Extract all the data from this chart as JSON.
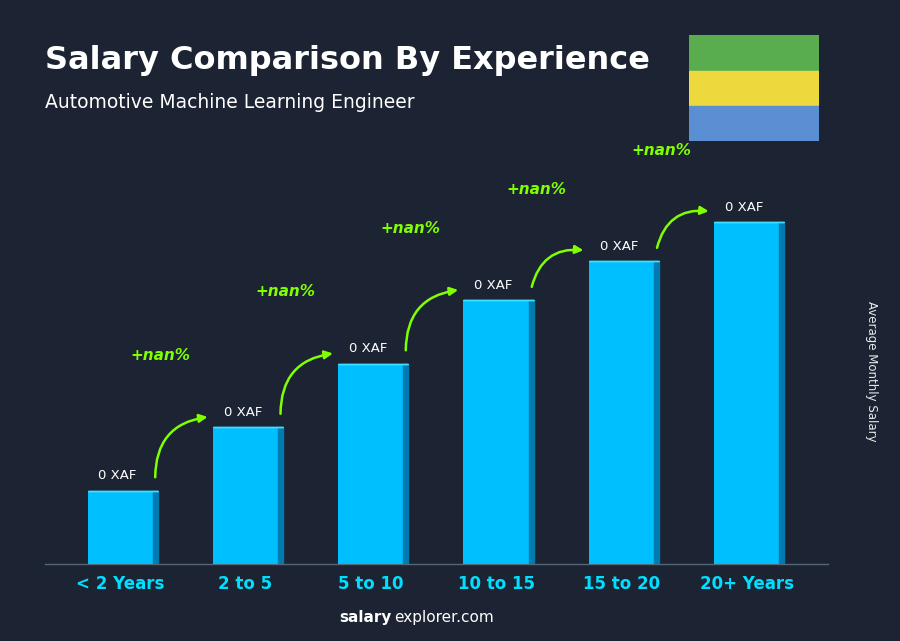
{
  "title": "Salary Comparison By Experience",
  "subtitle": "Automotive Machine Learning Engineer",
  "categories": [
    "< 2 Years",
    "2 to 5",
    "5 to 10",
    "10 to 15",
    "15 to 20",
    "20+ Years"
  ],
  "bar_color": "#00BFFF",
  "bg_color": "#1a1a2e",
  "title_color": "#ffffff",
  "subtitle_color": "#ffffff",
  "label_color": "#00DFFF",
  "value_labels": [
    "0 XAF",
    "0 XAF",
    "0 XAF",
    "0 XAF",
    "0 XAF",
    "0 XAF"
  ],
  "arrow_labels": [
    "+nan%",
    "+nan%",
    "+nan%",
    "+nan%",
    "+nan%"
  ],
  "arrow_color": "#7FFF00",
  "footer_bold": "salary",
  "footer_normal": "explorer.com",
  "ylabel_text": "Average Monthly Salary",
  "flag_colors": [
    "#5cb85c",
    "#f0d060",
    "#5b8fd4"
  ],
  "bar_heights": [
    1.5,
    2.8,
    4.1,
    5.4,
    6.2,
    7.0
  ]
}
